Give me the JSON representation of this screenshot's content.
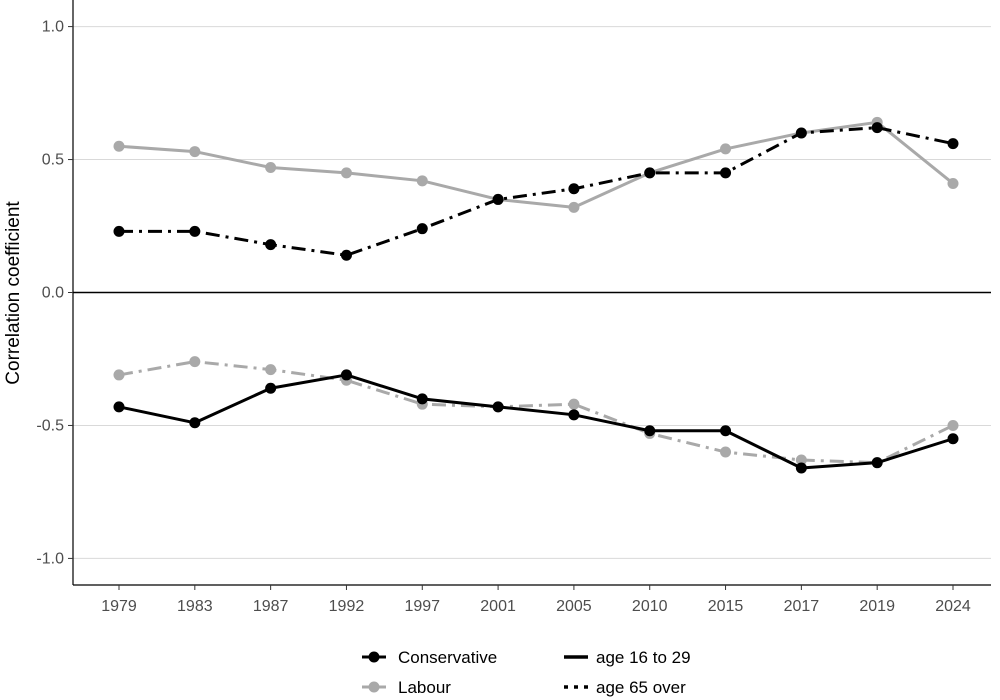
{
  "chart_data": {
    "type": "line",
    "title": "",
    "xlabel": "",
    "ylabel": "Correlation coefficient",
    "categories": [
      "1979",
      "1983",
      "1987",
      "1992",
      "1997",
      "2001",
      "2005",
      "2010",
      "2015",
      "2017",
      "2019",
      "2024"
    ],
    "ylim": [
      -1.1,
      1.1
    ],
    "yticks": [
      1.0,
      0.5,
      0.0,
      -0.5,
      -1.0
    ],
    "ytick_labels": [
      "1.0",
      "0.5",
      "0.0",
      "-0.5",
      "-1.0"
    ],
    "grid": true,
    "legend_position": "bottom",
    "series": [
      {
        "name": "Conservative, age 16 to 29",
        "party": "Conservative",
        "age": "age 16 to 29",
        "color": "#000000",
        "linestyle": "solid",
        "values": [
          -0.43,
          -0.49,
          -0.36,
          -0.31,
          -0.4,
          -0.43,
          -0.46,
          -0.52,
          -0.52,
          -0.66,
          -0.64,
          -0.55
        ]
      },
      {
        "name": "Conservative, age 65 over",
        "party": "Conservative",
        "age": "age 65 over",
        "color": "#000000",
        "linestyle": "dashdot",
        "values": [
          0.23,
          0.23,
          0.18,
          0.14,
          0.24,
          0.35,
          0.39,
          0.45,
          0.45,
          0.6,
          0.62,
          0.56
        ]
      },
      {
        "name": "Labour, age 16 to 29",
        "party": "Labour",
        "age": "age 16 to 29",
        "color": "#a9a9a9",
        "linestyle": "solid",
        "values": [
          0.55,
          0.53,
          0.47,
          0.45,
          0.42,
          0.35,
          0.32,
          0.45,
          0.54,
          0.6,
          0.64,
          0.41
        ]
      },
      {
        "name": "Labour, age 65 over",
        "party": "Labour",
        "age": "age 65 over",
        "color": "#a9a9a9",
        "linestyle": "dashdot",
        "values": [
          -0.31,
          -0.26,
          -0.29,
          -0.33,
          -0.42,
          -0.43,
          -0.42,
          -0.53,
          -0.6,
          -0.63,
          -0.64,
          -0.5
        ]
      }
    ],
    "legend": {
      "colour_entries": [
        {
          "label": "Conservative",
          "color": "#000000"
        },
        {
          "label": "Labour",
          "color": "#a9a9a9"
        }
      ],
      "linetype_entries": [
        {
          "label": "age 16 to 29",
          "linestyle": "solid"
        },
        {
          "label": "age 65 over",
          "linestyle": "dotted"
        }
      ]
    }
  }
}
